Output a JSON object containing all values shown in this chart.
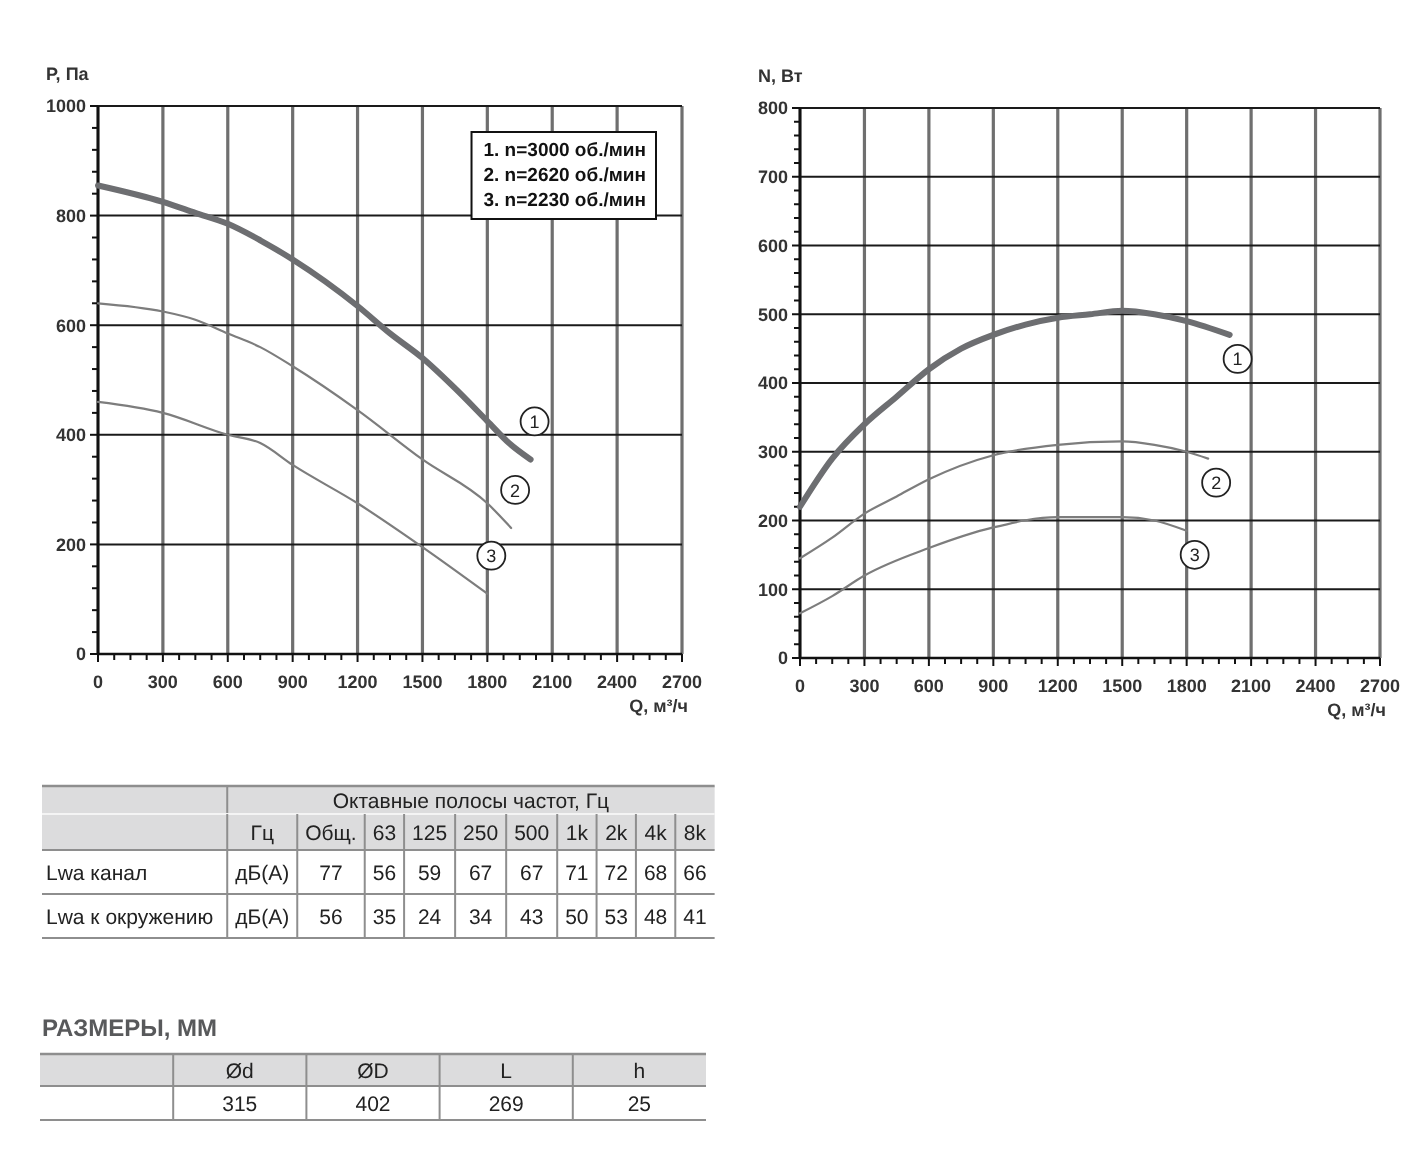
{
  "chart_data": [
    {
      "type": "line",
      "xlabel": "Q, м³/ч",
      "ylabel": "P, Па",
      "xlim": [
        0,
        2700
      ],
      "ylim": [
        0,
        1000
      ],
      "xticks": [
        0,
        {
          "value": 75,
          "label": null
        },
        {
          "value": 150,
          "label": null
        },
        {
          "value": 225,
          "label": null
        },
        300,
        {
          "value": 375,
          "label": null
        },
        {
          "value": 450,
          "label": null
        },
        {
          "value": 525,
          "label": null
        },
        600,
        {
          "value": 675,
          "label": null
        },
        {
          "value": 750,
          "label": null
        },
        {
          "value": 825,
          "label": null
        },
        900,
        {
          "value": 975,
          "label": null
        },
        {
          "value": 1050,
          "label": null
        },
        {
          "value": 1125,
          "label": null
        },
        1200,
        {
          "value": 1275,
          "label": null
        },
        {
          "value": 1350,
          "label": null
        },
        {
          "value": 1425,
          "label": null
        },
        1500,
        {
          "value": 1575,
          "label": null
        },
        {
          "value": 1650,
          "label": null
        },
        {
          "value": 1725,
          "label": null
        },
        1800,
        {
          "value": 1875,
          "label": null
        },
        {
          "value": 1950,
          "label": null
        },
        {
          "value": 2025,
          "label": null
        },
        2100,
        {
          "value": 2175,
          "label": null
        },
        {
          "value": 2250,
          "label": null
        },
        {
          "value": 2325,
          "label": null
        },
        2400,
        {
          "value": 2475,
          "label": null
        },
        {
          "value": 2550,
          "label": null
        },
        {
          "value": 2625,
          "label": null
        },
        2700
      ],
      "yticks": [
        0,
        {
          "value": 40,
          "label": null
        },
        {
          "value": 80,
          "label": null
        },
        {
          "value": 120,
          "label": null
        },
        {
          "value": 160,
          "label": null
        },
        200,
        {
          "value": 240,
          "label": null
        },
        {
          "value": 280,
          "label": null
        },
        {
          "value": 320,
          "label": null
        },
        {
          "value": 360,
          "label": null
        },
        400,
        {
          "value": 440,
          "label": null
        },
        {
          "value": 480,
          "label": null
        },
        {
          "value": 520,
          "label": null
        },
        {
          "value": 560,
          "label": null
        },
        600,
        {
          "value": 640,
          "label": null
        },
        {
          "value": 680,
          "label": null
        },
        {
          "value": 720,
          "label": null
        },
        {
          "value": 760,
          "label": null
        },
        800,
        {
          "value": 840,
          "label": null
        },
        {
          "value": 880,
          "label": null
        },
        {
          "value": 920,
          "label": null
        },
        {
          "value": 960,
          "label": null
        },
        1000
      ],
      "grid": true,
      "annotations": [
        "1. n=3000 об./мин",
        "2. n=2620 об./мин",
        "3. n=2230 об./мин"
      ],
      "series": [
        {
          "name": "1",
          "color": "#6d6e71",
          "x": [
            0,
            300,
            450,
            600,
            750,
            900,
            1050,
            1200,
            1350,
            1500,
            1650,
            1800,
            1900,
            2000
          ],
          "values": [
            855,
            825,
            805,
            785,
            755,
            720,
            680,
            635,
            585,
            540,
            485,
            425,
            385,
            355
          ]
        },
        {
          "name": "2",
          "color": "#7d7d7d",
          "x": [
            0,
            300,
            450,
            600,
            750,
            900,
            1200,
            1500,
            1800,
            1910
          ],
          "values": [
            640,
            625,
            610,
            585,
            560,
            525,
            445,
            355,
            275,
            230
          ]
        },
        {
          "name": "3",
          "color": "#7d7d7d",
          "x": [
            0,
            300,
            600,
            750,
            900,
            1200,
            1500,
            1800
          ],
          "values": [
            460,
            440,
            400,
            385,
            345,
            275,
            195,
            110
          ]
        }
      ]
    },
    {
      "type": "line",
      "xlabel": "Q, м³/ч",
      "ylabel": "N, Вт",
      "xlim": [
        0,
        2700
      ],
      "ylim": [
        0,
        800
      ],
      "xticks": [
        0,
        {
          "value": 75,
          "label": null
        },
        {
          "value": 150,
          "label": null
        },
        {
          "value": 225,
          "label": null
        },
        300,
        {
          "value": 375,
          "label": null
        },
        {
          "value": 450,
          "label": null
        },
        {
          "value": 525,
          "label": null
        },
        600,
        {
          "value": 675,
          "label": null
        },
        {
          "value": 750,
          "label": null
        },
        {
          "value": 825,
          "label": null
        },
        900,
        {
          "value": 975,
          "label": null
        },
        {
          "value": 1050,
          "label": null
        },
        {
          "value": 1125,
          "label": null
        },
        1200,
        {
          "value": 1275,
          "label": null
        },
        {
          "value": 1350,
          "label": null
        },
        {
          "value": 1425,
          "label": null
        },
        1500,
        {
          "value": 1575,
          "label": null
        },
        {
          "value": 1650,
          "label": null
        },
        {
          "value": 1725,
          "label": null
        },
        1800,
        {
          "value": 1875,
          "label": null
        },
        {
          "value": 1950,
          "label": null
        },
        {
          "value": 2025,
          "label": null
        },
        2100,
        {
          "value": 2175,
          "label": null
        },
        {
          "value": 2250,
          "label": null
        },
        {
          "value": 2325,
          "label": null
        },
        2400,
        {
          "value": 2475,
          "label": null
        },
        {
          "value": 2550,
          "label": null
        },
        {
          "value": 2625,
          "label": null
        },
        2700
      ],
      "yticks": [
        0,
        {
          "value": 20,
          "label": null
        },
        {
          "value": 40,
          "label": null
        },
        {
          "value": 60,
          "label": null
        },
        {
          "value": 80,
          "label": null
        },
        100,
        {
          "value": 120,
          "label": null
        },
        {
          "value": 140,
          "label": null
        },
        {
          "value": 160,
          "label": null
        },
        {
          "value": 180,
          "label": null
        },
        200,
        {
          "value": 220,
          "label": null
        },
        {
          "value": 240,
          "label": null
        },
        {
          "value": 260,
          "label": null
        },
        {
          "value": 280,
          "label": null
        },
        300,
        {
          "value": 320,
          "label": null
        },
        {
          "value": 340,
          "label": null
        },
        {
          "value": 360,
          "label": null
        },
        {
          "value": 380,
          "label": null
        },
        400,
        {
          "value": 420,
          "label": null
        },
        {
          "value": 440,
          "label": null
        },
        {
          "value": 460,
          "label": null
        },
        {
          "value": 480,
          "label": null
        },
        500,
        {
          "value": 520,
          "label": null
        },
        {
          "value": 540,
          "label": null
        },
        {
          "value": 560,
          "label": null
        },
        {
          "value": 580,
          "label": null
        },
        600,
        {
          "value": 620,
          "label": null
        },
        {
          "value": 640,
          "label": null
        },
        {
          "value": 660,
          "label": null
        },
        {
          "value": 680,
          "label": null
        },
        700,
        {
          "value": 720,
          "label": null
        },
        {
          "value": 740,
          "label": null
        },
        {
          "value": 760,
          "label": null
        },
        {
          "value": 780,
          "label": null
        },
        800
      ],
      "grid": true,
      "series": [
        {
          "name": "1",
          "color": "#6d6e71",
          "x": [
            0,
            150,
            300,
            450,
            600,
            750,
            900,
            1050,
            1200,
            1350,
            1500,
            1650,
            1800,
            2000
          ],
          "values": [
            220,
            290,
            340,
            380,
            420,
            450,
            470,
            485,
            495,
            500,
            505,
            500,
            490,
            470
          ]
        },
        {
          "name": "2",
          "color": "#7d7d7d",
          "x": [
            0,
            150,
            300,
            450,
            600,
            900,
            1200,
            1500,
            1650,
            1800,
            1900
          ],
          "values": [
            145,
            175,
            210,
            235,
            260,
            295,
            310,
            315,
            310,
            300,
            290
          ]
        },
        {
          "name": "3",
          "color": "#7d7d7d",
          "x": [
            0,
            150,
            300,
            600,
            900,
            1200,
            1500,
            1650,
            1800
          ],
          "values": [
            65,
            90,
            120,
            160,
            190,
            205,
            205,
            200,
            185
          ]
        }
      ]
    },
    {
      "type": "other",
      "xlabel": "Октавные полосы частот, Гц",
      "categories": [
        "Гц",
        "Общ.",
        "63",
        "125",
        "250",
        "500",
        "1k",
        "2k",
        "4k",
        "8k"
      ],
      "y_categories": [
        "Lwa канал",
        "Lwa к окружению"
      ],
      "cell_labels": [
        [
          "дБ(А)",
          "77",
          "56",
          "59",
          "67",
          "67",
          "71",
          "72",
          "68",
          "66"
        ],
        [
          "дБ(А)",
          "56",
          "35",
          "24",
          "34",
          "43",
          "50",
          "53",
          "48",
          "41"
        ]
      ]
    },
    {
      "type": "other",
      "title": "РАЗМЕРЫ, ММ",
      "categories": [
        "Ød",
        "ØD",
        "L",
        "h"
      ],
      "y_categories": [
        null
      ],
      "cell_labels": [
        [
          "315",
          "402",
          "269",
          "25"
        ]
      ]
    }
  ]
}
